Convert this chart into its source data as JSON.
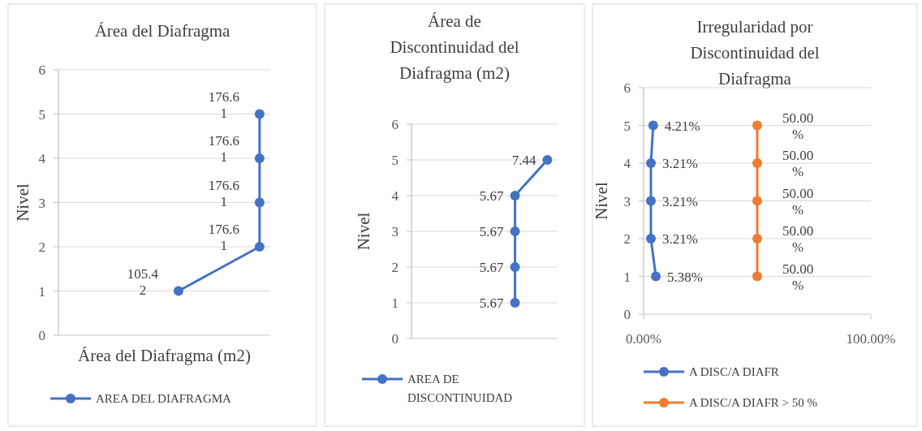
{
  "chart_data": [
    {
      "type": "line",
      "orientation": "horizontal",
      "title": "Área del Diafragma",
      "xlabel": "Área del Diafragma (m2)",
      "ylabel": "Nivel",
      "categories": [
        "6",
        "5",
        "4",
        "3",
        "2",
        "1",
        "0"
      ],
      "xlim": [
        0,
        186
      ],
      "tick_labels": "y",
      "grid": "y",
      "legend": "bottom",
      "marker": "circle",
      "series": [
        {
          "name": "AREA DEL DIAFRAGMA",
          "color": "#4472c4",
          "values": [
            null,
            176.61,
            176.61,
            176.61,
            176.61,
            105.42,
            null
          ],
          "value_labels": [
            null,
            "176.61",
            "176.61",
            "176.61",
            "176.61",
            "105.42",
            null
          ]
        }
      ]
    },
    {
      "type": "line",
      "orientation": "horizontal",
      "title": "Área de Discontinuidad del Diafragma (m2)",
      "ylabel": "Nivel",
      "categories": [
        "6",
        "5",
        "4",
        "3",
        "2",
        "1",
        "0"
      ],
      "xlim": [
        0,
        8
      ],
      "tick_labels": "y",
      "grid": "y",
      "legend": "bottom",
      "marker": "circle",
      "series": [
        {
          "name": "AREA DE DISCONTINUIDAD",
          "color": "#4472c4",
          "values": [
            null,
            7.44,
            5.67,
            5.67,
            5.67,
            5.67,
            null
          ],
          "value_labels": [
            null,
            "7.44",
            "5.67",
            "5.67",
            "5.67",
            "5.67",
            null
          ]
        }
      ]
    },
    {
      "type": "line",
      "orientation": "horizontal",
      "title": "Irregularidad por Discontinuidad del Diafragma",
      "ylabel": "Nivel",
      "categories": [
        "6",
        "5",
        "4",
        "3",
        "2",
        "1",
        "0"
      ],
      "xlim": [
        0,
        100
      ],
      "xticks": [
        {
          "value": 0,
          "label": "0.00%"
        },
        {
          "value": 100,
          "label": "100.00%"
        }
      ],
      "grid": "y",
      "legend": "bottom",
      "marker": "circle",
      "series": [
        {
          "name": "A DISC/A DIAFR",
          "color": "#4472c4",
          "values": [
            null,
            4.21,
            3.21,
            3.21,
            3.21,
            5.38,
            null
          ],
          "value_labels": [
            null,
            "4.21%",
            "3.21%",
            "3.21%",
            "3.21%",
            "5.38%",
            null
          ]
        },
        {
          "name": "A DISC/A DIAFR > 50 %",
          "color": "#ed7d31",
          "values": [
            null,
            50,
            50,
            50,
            50,
            50,
            null
          ],
          "value_labels": [
            null,
            "50.00%",
            "50.00%",
            "50.00%",
            "50.00%",
            "50.00%",
            null
          ]
        }
      ]
    }
  ]
}
